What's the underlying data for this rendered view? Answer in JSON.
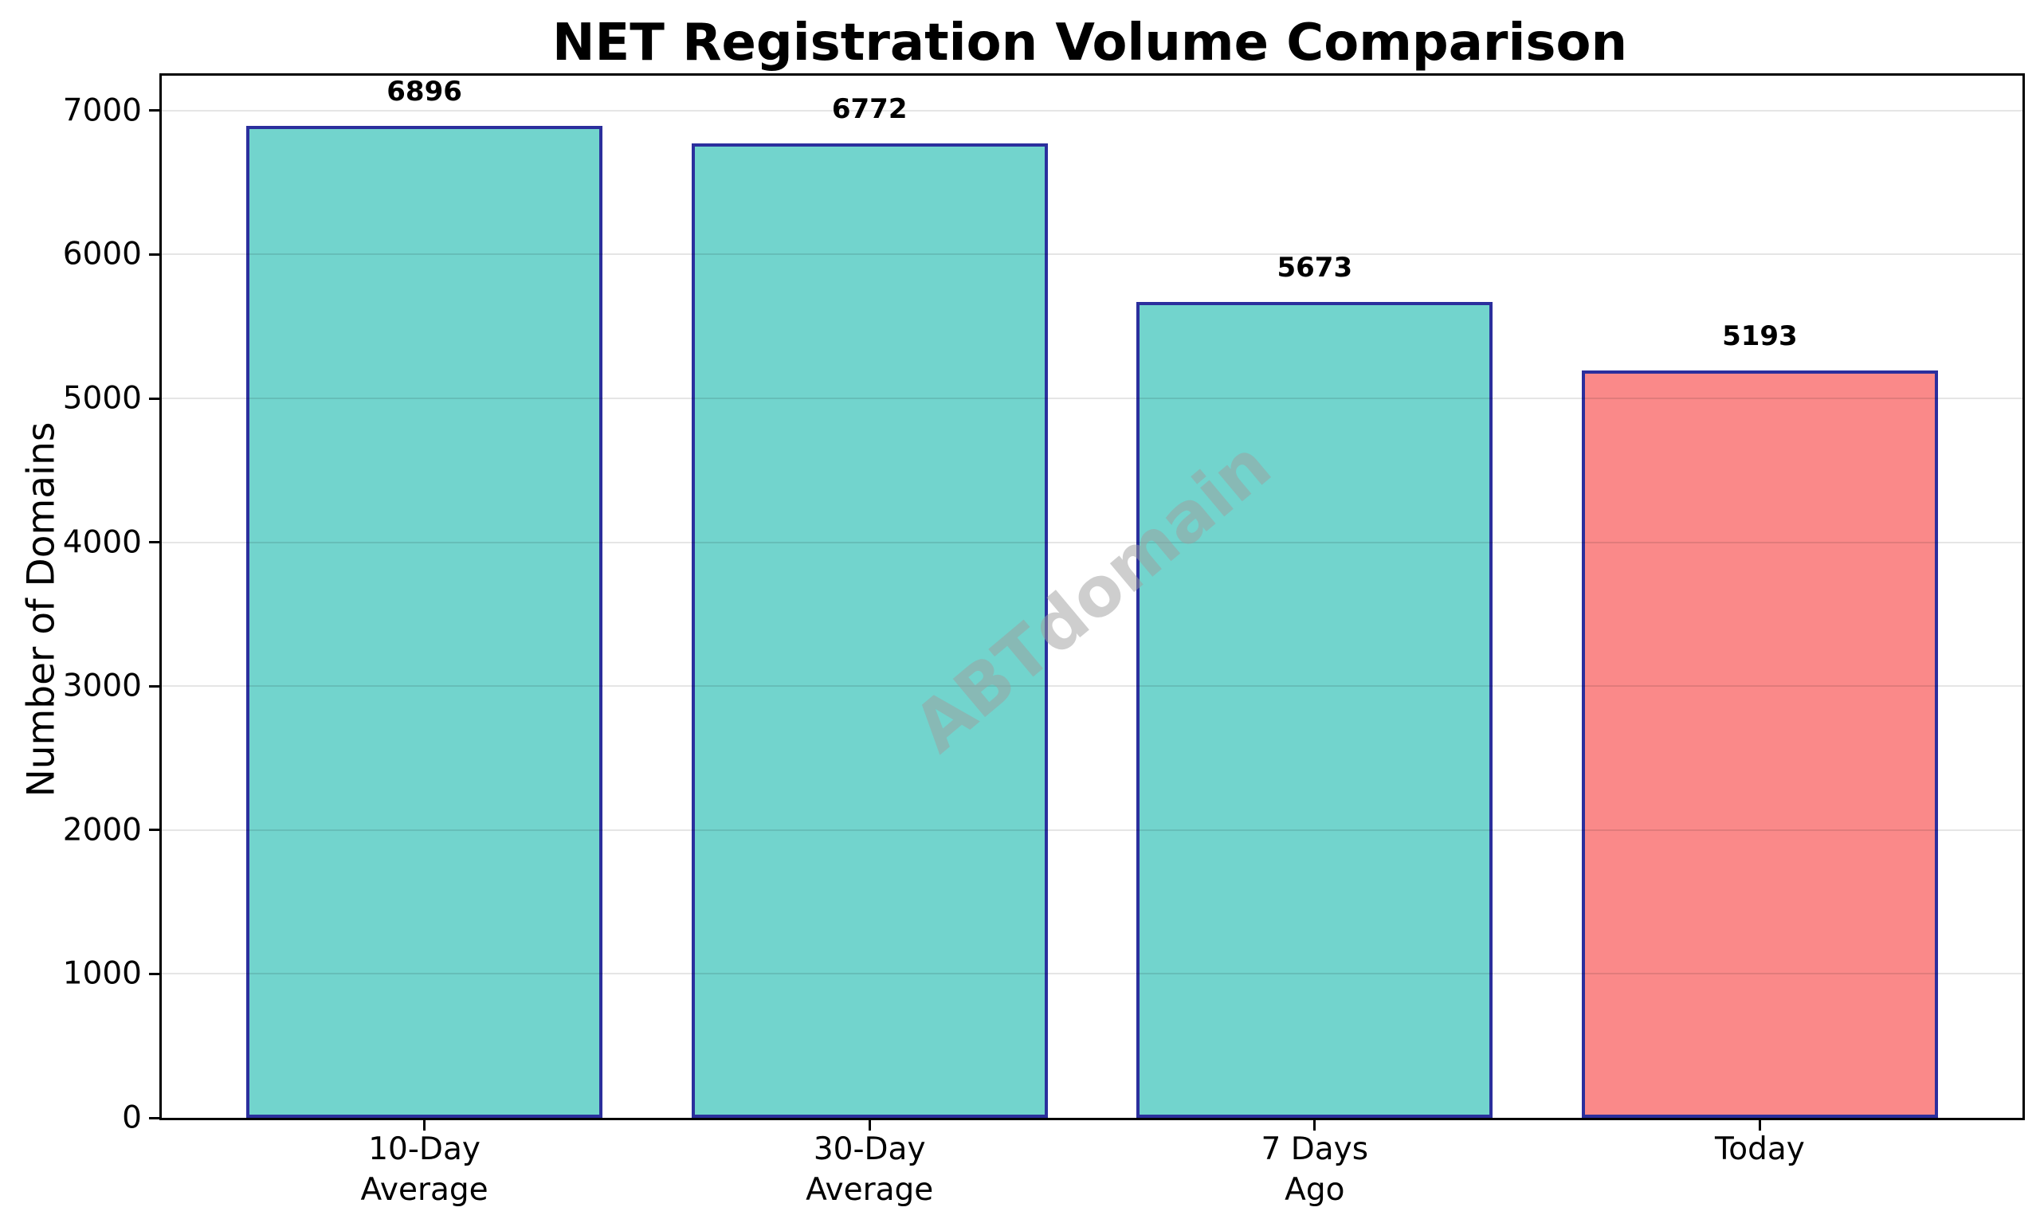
{
  "chart_data": {
    "type": "bar",
    "title": "NET Registration Volume Comparison",
    "xlabel": "",
    "ylabel": "Number of Domains",
    "categories": [
      "10-Day\nAverage",
      "30-Day\nAverage",
      "7 Days\nAgo",
      "Today"
    ],
    "values": [
      6896,
      6772,
      5673,
      5193
    ],
    "value_labels": [
      "6896",
      "6772",
      "5673",
      "5193"
    ],
    "yticks": [
      0,
      1000,
      2000,
      3000,
      4000,
      5000,
      6000,
      7000
    ],
    "ytick_labels": [
      "0",
      "1000",
      "2000",
      "3000",
      "4000",
      "5000",
      "6000",
      "7000"
    ],
    "ylim": [
      0,
      7243
    ],
    "grid": "horizontal",
    "legend": "none",
    "watermark": "ABTdomain",
    "colors": {
      "bar_fill": [
        "#72D4CD",
        "#72D4CD",
        "#72D4CD",
        "#FA8989"
      ],
      "bar_edge": "#2B2F9D",
      "gridline": "rgba(0,0,0,0.10)",
      "text": "#000000",
      "watermark": "rgba(158,158,158,0.5)",
      "background": "#FFFFFF"
    }
  }
}
